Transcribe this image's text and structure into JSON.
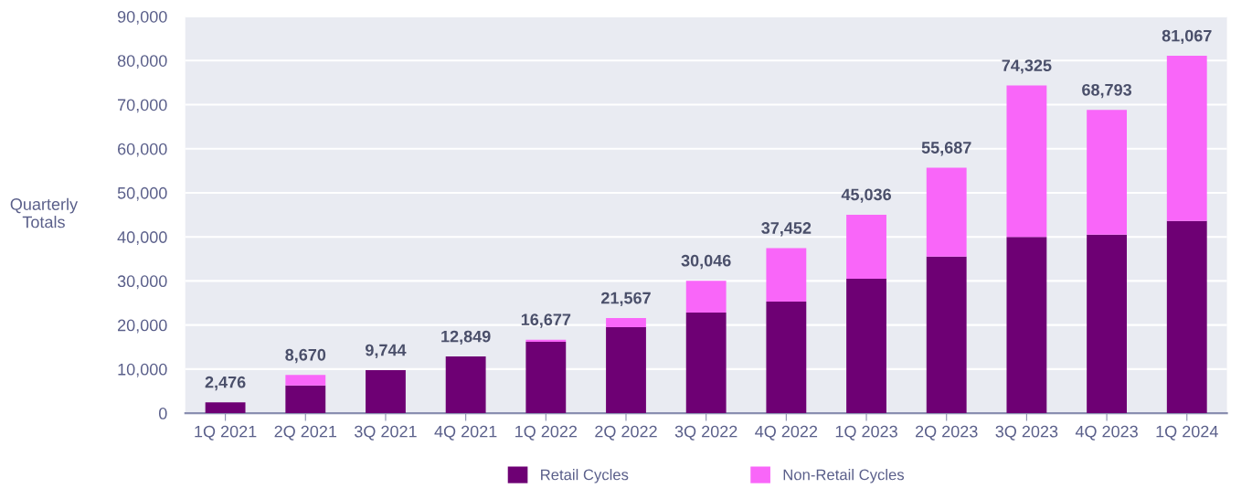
{
  "chart_data": {
    "type": "bar",
    "stacked": true,
    "ylabel": "Quarterly\nTotals",
    "categories": [
      "1Q 2021",
      "2Q 2021",
      "3Q 2021",
      "4Q 2021",
      "1Q 2022",
      "2Q 2022",
      "3Q 2022",
      "4Q 2022",
      "1Q 2023",
      "2Q 2023",
      "3Q 2023",
      "4Q 2023",
      "1Q 2024"
    ],
    "series": [
      {
        "name": "Retail Cycles",
        "color": "#6e0074",
        "values": [
          2476,
          6300,
          9744,
          12849,
          16200,
          19500,
          22800,
          25300,
          30500,
          35500,
          40000,
          40500,
          43600
        ]
      },
      {
        "name": "Non-Retail Cycles",
        "color": "#f966f9",
        "values": [
          0,
          2370,
          0,
          0,
          477,
          2067,
          7246,
          12152,
          14536,
          20187,
          34325,
          28293,
          37467
        ]
      }
    ],
    "totals": [
      "2,476",
      "8,670",
      "9,744",
      "12,849",
      "16,677",
      "21,567",
      "30,046",
      "37,452",
      "45,036",
      "55,687",
      "74,325",
      "68,793",
      "81,067"
    ],
    "ylim": [
      0,
      90000
    ],
    "yticks": [
      {
        "value": 0,
        "label": "0"
      },
      {
        "value": 10000,
        "label": "10,000"
      },
      {
        "value": 20000,
        "label": "20,000"
      },
      {
        "value": 30000,
        "label": "30,000"
      },
      {
        "value": 40000,
        "label": "40,000"
      },
      {
        "value": 50000,
        "label": "50,000"
      },
      {
        "value": 60000,
        "label": "60,000"
      },
      {
        "value": 70000,
        "label": "70,000"
      },
      {
        "value": 80000,
        "label": "80,000"
      },
      {
        "value": 90000,
        "label": "90,000"
      }
    ],
    "grid": "y",
    "legend": "bottom"
  }
}
